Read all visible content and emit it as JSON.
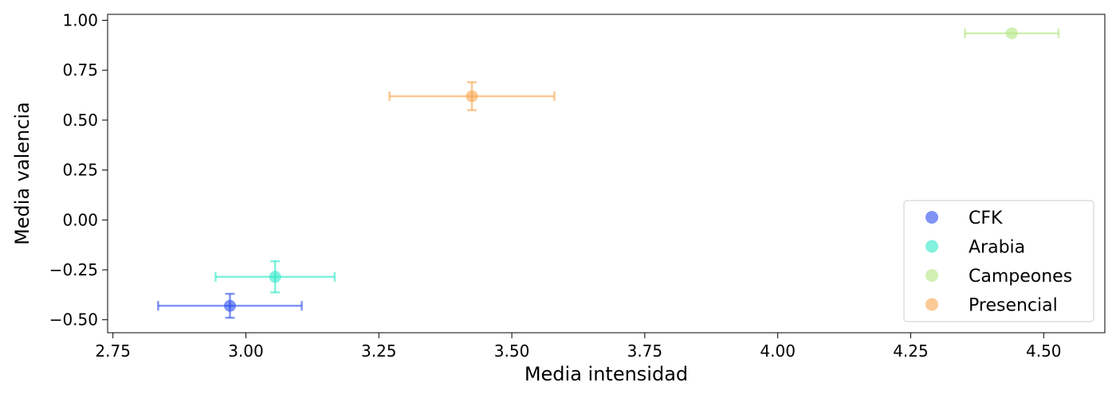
{
  "chart_data": {
    "type": "scatter",
    "title": "",
    "xlabel": "Media intensidad",
    "ylabel": "Media valencia",
    "xlim": [
      2.74,
      4.615
    ],
    "ylim": [
      -0.565,
      1.03
    ],
    "xticks": [
      2.75,
      3.0,
      3.25,
      3.5,
      3.75,
      4.0,
      4.25,
      4.5
    ],
    "xtick_labels": [
      "2.75",
      "3.00",
      "3.25",
      "3.50",
      "3.75",
      "4.00",
      "4.25",
      "4.50"
    ],
    "yticks": [
      -0.5,
      -0.25,
      0.0,
      0.25,
      0.5,
      0.75,
      1.0
    ],
    "ytick_labels": [
      "−0.50",
      "−0.25",
      "0.00",
      "0.25",
      "0.50",
      "0.75",
      "1.00"
    ],
    "grid": false,
    "legend_position": "lower-right",
    "series": [
      {
        "name": "CFK",
        "color": "#2b4cf0",
        "x": 2.97,
        "y": -0.43,
        "xerr": 0.135,
        "yerr": 0.06
      },
      {
        "name": "Arabia",
        "color": "#2fe8c8",
        "x": 3.055,
        "y": -0.285,
        "xerr": 0.112,
        "yerr": 0.078
      },
      {
        "name": "Campeones",
        "color": "#b2e67e",
        "x": 4.44,
        "y": 0.935,
        "xerr": 0.088,
        "yerr": 0.0
      },
      {
        "name": "Presencial",
        "color": "#f7a54f",
        "x": 3.425,
        "y": 0.62,
        "xerr": 0.155,
        "yerr": 0.07
      }
    ]
  }
}
